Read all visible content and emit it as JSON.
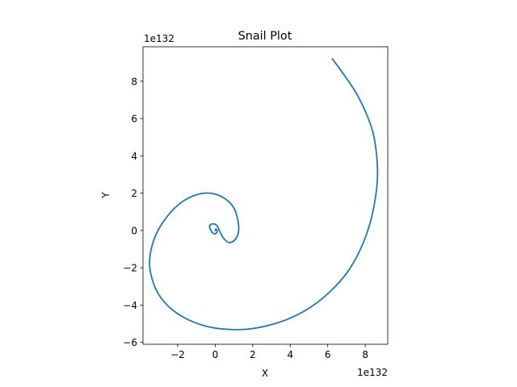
{
  "chart_data": {
    "type": "line",
    "title": "Snail Plot",
    "xlabel": "X",
    "ylabel": "Y",
    "x_offset_label": "1e132",
    "y_offset_label": "1e132",
    "xlim": [
      -3.85,
      9.2
    ],
    "ylim": [
      -6.1,
      9.85
    ],
    "x_ticks": [
      -2,
      0,
      2,
      4,
      6,
      8
    ],
    "x_tick_labels": [
      "−2",
      "0",
      "2",
      "4",
      "6",
      "8"
    ],
    "y_ticks": [
      -6,
      -4,
      -2,
      0,
      2,
      4,
      6,
      8
    ],
    "y_tick_labels": [
      "−6",
      "−4",
      "−2",
      "0",
      "2",
      "4",
      "6",
      "8"
    ],
    "grid": false,
    "series_color": "#1f77b4",
    "series": [
      {
        "x": [
          0.0,
          0.04,
          0.1,
          0.08,
          -0.02,
          -0.15,
          -0.25,
          -0.3,
          -0.25,
          -0.1,
          0.1,
          0.4,
          0.75,
          1.1,
          1.25,
          1.2,
          1.0,
          0.6,
          0.0,
          -0.6,
          -1.3,
          -2.0,
          -2.6,
          -3.1,
          -3.4,
          -3.5,
          -3.35,
          -3.0,
          -2.4,
          -1.6,
          -0.6,
          0.4,
          1.6,
          2.8,
          4.0,
          5.1,
          6.1,
          7.0,
          7.7,
          8.2,
          8.5,
          8.65,
          8.6,
          8.4,
          8.0,
          7.5,
          6.9,
          6.25
        ],
        "y": [
          0.0,
          0.08,
          0.0,
          -0.12,
          -0.18,
          -0.12,
          0.05,
          0.22,
          0.32,
          0.35,
          0.25,
          -0.35,
          -0.65,
          -0.45,
          0.0,
          0.6,
          1.2,
          1.65,
          1.95,
          2.0,
          1.8,
          1.35,
          0.7,
          -0.1,
          -0.95,
          -1.8,
          -2.65,
          -3.45,
          -4.15,
          -4.7,
          -5.1,
          -5.28,
          -5.3,
          -5.1,
          -4.7,
          -4.1,
          -3.3,
          -2.3,
          -1.1,
          0.2,
          1.5,
          2.8,
          4.1,
          5.3,
          6.4,
          7.4,
          8.3,
          9.2
        ]
      }
    ]
  }
}
